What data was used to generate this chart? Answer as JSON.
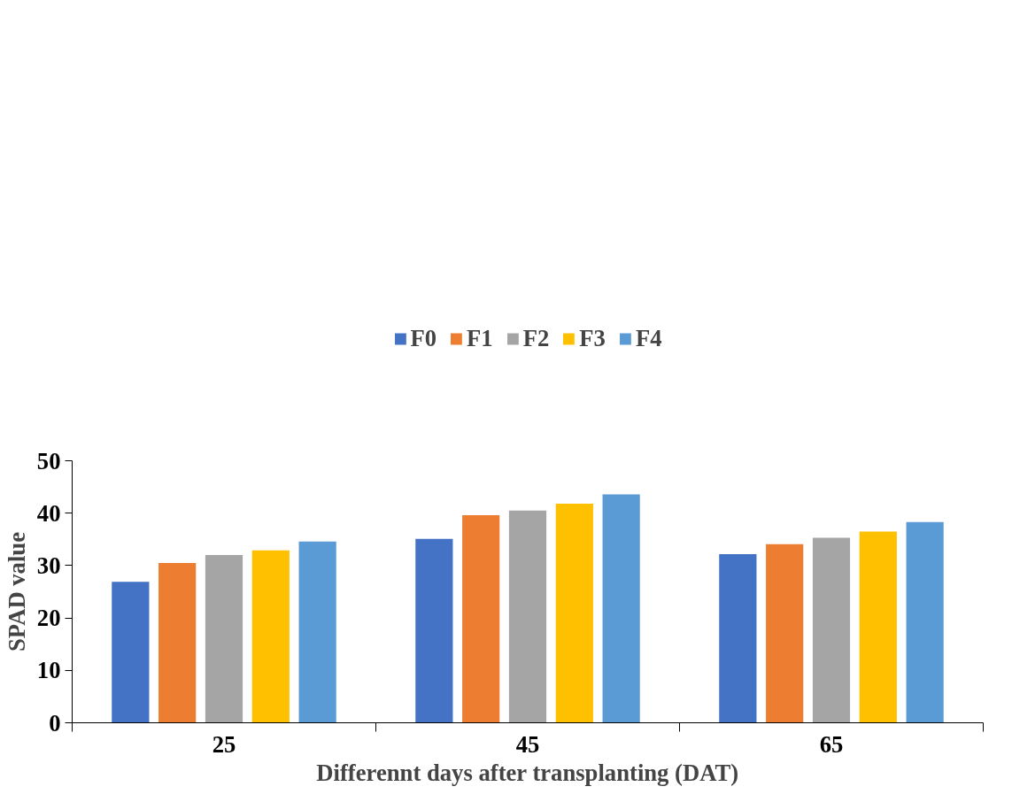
{
  "chart_data": {
    "type": "bar",
    "xlabel": "Differennt days after transplanting (DAT)",
    "ylabel": "SPAD value",
    "categories": [
      "25",
      "45",
      "65"
    ],
    "series": [
      {
        "name": "F0",
        "color": "#4472c4",
        "values": [
          26.9,
          35.1,
          32.2
        ]
      },
      {
        "name": "F1",
        "color": "#ed7d31",
        "values": [
          30.5,
          39.6,
          34.1
        ]
      },
      {
        "name": "F2",
        "color": "#a5a5a5",
        "values": [
          32.0,
          40.5,
          35.3
        ]
      },
      {
        "name": "F3",
        "color": "#ffc000",
        "values": [
          32.9,
          41.8,
          36.5
        ]
      },
      {
        "name": "F4",
        "color": "#5b9bd5",
        "values": [
          34.6,
          43.6,
          38.3
        ]
      }
    ],
    "ylim": [
      0,
      50
    ],
    "yticks": [
      0,
      10,
      20,
      30,
      40,
      50
    ],
    "grid": false,
    "legend": "top"
  }
}
